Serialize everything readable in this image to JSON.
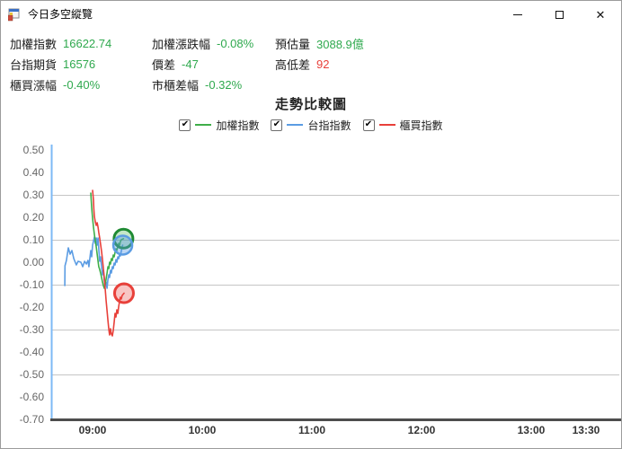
{
  "window": {
    "title": "今日多空縱覽"
  },
  "info_panel": {
    "rows": [
      {
        "cells": [
          {
            "label": "加權指數",
            "value": "16622.74",
            "color": "green"
          },
          {
            "label": "加權漲跌幅",
            "value": "-0.08%",
            "color": "green"
          },
          {
            "label": "預估量",
            "value": "3088.9億",
            "color": "green"
          }
        ]
      },
      {
        "cells": [
          {
            "label": "台指期貨",
            "value": "16576",
            "color": "green"
          },
          {
            "label": "價差",
            "value": "-47",
            "color": "green"
          },
          {
            "label": "高低差",
            "value": "92",
            "color": "red"
          }
        ]
      },
      {
        "cells": [
          {
            "label": "櫃買漲幅",
            "value": "-0.40%",
            "color": "green"
          },
          {
            "label": "市櫃差幅",
            "value": "-0.32%",
            "color": "green"
          }
        ]
      }
    ]
  },
  "colors": {
    "value_green": "#2fa94e",
    "value_red": "#e8403a",
    "series_green": "#3fae49",
    "series_blue": "#5b9ce3",
    "series_red": "#e8403a",
    "grid": "#c5c5c5",
    "y_axis": "#7db9f5",
    "x_axis": "#4d4d4d"
  },
  "chart_data": {
    "type": "line",
    "title": "走勢比較圖",
    "grid": true,
    "legend_position": "top-center",
    "x_axis": {
      "unit": "minutes_from_09:00",
      "ticks": [
        {
          "label": "09:00",
          "m": 0
        },
        {
          "label": "10:00",
          "m": 60
        },
        {
          "label": "11:00",
          "m": 120
        },
        {
          "label": "12:00",
          "m": 180
        },
        {
          "label": "13:00",
          "m": 240
        },
        {
          "label": "13:30",
          "m": 270
        }
      ]
    },
    "y_axis": {
      "min": -0.7,
      "max": 0.5,
      "tick_labels": [
        "0.50",
        "0.40",
        "0.30",
        "0.20",
        "0.10",
        "0.00",
        "-0.10",
        "-0.20",
        "-0.30",
        "-0.40",
        "-0.50",
        "-0.60",
        "-0.70"
      ],
      "tick_values": [
        0.5,
        0.4,
        0.3,
        0.2,
        0.1,
        0.0,
        -0.1,
        -0.2,
        -0.3,
        -0.4,
        -0.5,
        -0.6,
        -0.7
      ],
      "grid_values": [
        0.3,
        0.1,
        -0.1,
        -0.3,
        -0.5
      ]
    },
    "legend": [
      {
        "label": "加權指數",
        "checked": true,
        "color_key": "series_green"
      },
      {
        "label": "台指指數",
        "checked": true,
        "color_key": "series_blue"
      },
      {
        "label": "櫃買指數",
        "checked": true,
        "color_key": "series_red"
      }
    ],
    "series": [
      {
        "name": "台指指數",
        "key": "taifex",
        "color_key": "series_blue",
        "stroke_width": 1.6,
        "points": [
          [
            -15.2,
            -0.104
          ],
          [
            -15.1,
            -0.016
          ],
          [
            -14.3,
            0.008
          ],
          [
            -13.3,
            0.064
          ],
          [
            -12.3,
            0.036
          ],
          [
            -11.3,
            0.052
          ],
          [
            -10.3,
            0.016
          ],
          [
            -8.9,
            -0.012
          ],
          [
            -7.9,
            0.004
          ],
          [
            -6.4,
            0.0
          ],
          [
            -5.4,
            -0.02
          ],
          [
            -4.4,
            0.004
          ],
          [
            -3.4,
            -0.008
          ],
          [
            -2.5,
            0.008
          ],
          [
            -2.0,
            -0.02
          ],
          [
            -1.0,
            0.052
          ],
          [
            -0.5,
            0.024
          ],
          [
            0,
            0.076
          ],
          [
            1.0,
            0.112
          ],
          [
            1.5,
            0.084
          ],
          [
            2.0,
            0.108
          ],
          [
            2.5,
            0.076
          ],
          [
            3.0,
            0.108
          ],
          [
            3.4,
            0.06
          ],
          [
            3.9,
            0.004
          ],
          [
            4.4,
            0.024
          ],
          [
            4.9,
            -0.02
          ],
          [
            5.4,
            -0.056
          ],
          [
            5.9,
            -0.036
          ],
          [
            6.4,
            -0.08
          ],
          [
            6.9,
            -0.108
          ],
          [
            7.4,
            -0.088
          ],
          [
            7.9,
            -0.116
          ],
          [
            8.4,
            -0.076
          ],
          [
            8.9,
            -0.056
          ],
          [
            9.3,
            -0.068
          ],
          [
            9.8,
            -0.036
          ],
          [
            10.3,
            -0.048
          ],
          [
            10.8,
            -0.02
          ],
          [
            11.3,
            -0.028
          ],
          [
            11.8,
            -0.004
          ],
          [
            12.3,
            -0.012
          ],
          [
            12.8,
            0.012
          ],
          [
            13.3,
            0.0
          ],
          [
            13.8,
            0.024
          ],
          [
            14.3,
            0.016
          ],
          [
            14.8,
            0.036
          ],
          [
            15.2,
            0.028
          ],
          [
            15.7,
            0.048
          ],
          [
            16.2,
            0.068
          ],
          [
            16.5,
            0.076
          ]
        ],
        "end_marker": {
          "m": 16.5,
          "v": 0.076,
          "radius": 10.5,
          "stroke_width": 2.5,
          "fill_opacity": 0.4
        }
      },
      {
        "name": "加權指數",
        "key": "weighted",
        "color_key": "series_green",
        "stroke_width": 1.6,
        "points": [
          [
            -1.0,
            0.308
          ],
          [
            -0.5,
            0.244
          ],
          [
            0,
            0.196
          ],
          [
            0.5,
            0.156
          ],
          [
            1.0,
            0.124
          ],
          [
            1.5,
            0.096
          ],
          [
            2.0,
            0.068
          ],
          [
            2.5,
            0.036
          ],
          [
            3.0,
            0.004
          ],
          [
            3.4,
            -0.02
          ],
          [
            3.9,
            -0.032
          ],
          [
            4.4,
            -0.048
          ],
          [
            4.9,
            -0.068
          ],
          [
            5.4,
            -0.088
          ],
          [
            5.9,
            -0.104
          ],
          [
            6.4,
            -0.116
          ],
          [
            6.9,
            -0.1
          ],
          [
            7.4,
            -0.076
          ],
          [
            7.9,
            -0.048
          ],
          [
            8.4,
            -0.02
          ],
          [
            8.9,
            -0.028
          ],
          [
            9.3,
            0.0
          ],
          [
            9.8,
            -0.008
          ],
          [
            10.3,
            0.016
          ],
          [
            10.8,
            0.008
          ],
          [
            11.3,
            0.032
          ],
          [
            11.8,
            0.024
          ],
          [
            12.3,
            0.044
          ],
          [
            12.8,
            0.06
          ],
          [
            13.3,
            0.052
          ],
          [
            13.8,
            0.072
          ],
          [
            14.3,
            0.084
          ],
          [
            14.8,
            0.076
          ],
          [
            15.2,
            0.092
          ],
          [
            15.7,
            0.1
          ],
          [
            16.9,
            0.105
          ]
        ],
        "end_marker": {
          "m": 16.9,
          "v": 0.105,
          "radius": 10.5,
          "stroke_width": 3,
          "fill_opacity": 0.3
        }
      },
      {
        "name": "櫃買指數",
        "key": "otc",
        "color_key": "series_red",
        "stroke_width": 1.6,
        "points": [
          [
            0,
            0.32
          ],
          [
            0.5,
            0.276
          ],
          [
            0.7,
            0.236
          ],
          [
            1.0,
            0.204
          ],
          [
            1.5,
            0.18
          ],
          [
            2.0,
            0.164
          ],
          [
            2.5,
            0.176
          ],
          [
            3.0,
            0.156
          ],
          [
            3.4,
            0.132
          ],
          [
            3.9,
            0.108
          ],
          [
            4.4,
            0.08
          ],
          [
            4.9,
            0.048
          ],
          [
            5.4,
            0.012
          ],
          [
            5.9,
            -0.028
          ],
          [
            6.4,
            -0.068
          ],
          [
            6.9,
            -0.116
          ],
          [
            7.4,
            -0.168
          ],
          [
            7.9,
            -0.216
          ],
          [
            8.4,
            -0.26
          ],
          [
            8.9,
            -0.3
          ],
          [
            9.3,
            -0.324
          ],
          [
            9.8,
            -0.296
          ],
          [
            10.3,
            -0.32
          ],
          [
            10.8,
            -0.328
          ],
          [
            11.3,
            -0.304
          ],
          [
            11.8,
            -0.268
          ],
          [
            12.3,
            -0.228
          ],
          [
            12.8,
            -0.244
          ],
          [
            13.3,
            -0.212
          ],
          [
            13.8,
            -0.228
          ],
          [
            14.3,
            -0.196
          ],
          [
            14.8,
            -0.172
          ],
          [
            15.2,
            -0.156
          ],
          [
            15.7,
            -0.164
          ],
          [
            16.2,
            -0.148
          ],
          [
            17.2,
            -0.138
          ]
        ],
        "end_marker": {
          "m": 17.2,
          "v": -0.138,
          "radius": 10.5,
          "stroke_width": 3,
          "fill_opacity": 0.3
        }
      }
    ]
  }
}
